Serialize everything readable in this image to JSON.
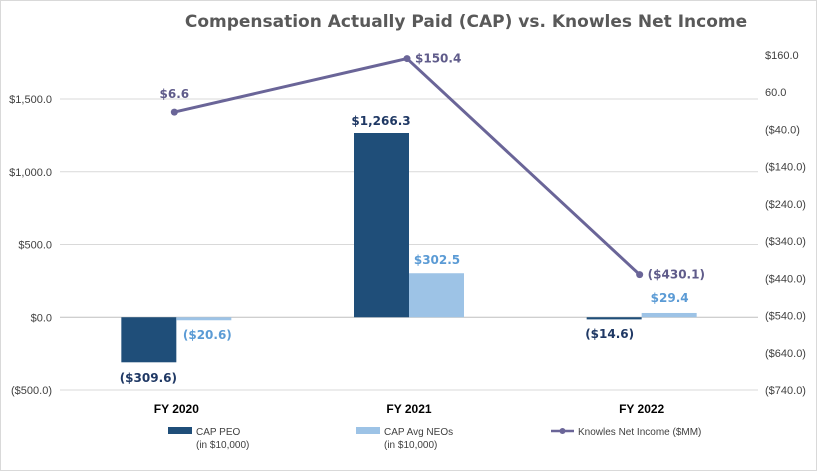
{
  "chart_data": {
    "type": "bar",
    "title": "Compensation Actually Paid (CAP) vs. Knowles Net Income",
    "categories": [
      "FY 2020",
      "FY 2021",
      "FY 2022"
    ],
    "series": [
      {
        "name": "CAP PEO",
        "name_line2": "(in $10,000)",
        "axis": "left",
        "color": "#1f4e79",
        "label_color": "#1f3864",
        "values": [
          -309.6,
          1266.3,
          -14.6
        ],
        "labels": [
          "($309.6)",
          "$1,266.3",
          "($14.6)"
        ]
      },
      {
        "name": "CAP Avg NEOs",
        "name_line2": "(in $10,000)",
        "axis": "left",
        "color": "#9dc3e6",
        "label_color": "#5b9bd5",
        "values": [
          -20.6,
          302.5,
          29.4
        ],
        "labels": [
          "($20.6)",
          "$302.5",
          "$29.4"
        ]
      },
      {
        "name": "Knowles Net Income ($MM)",
        "axis": "right",
        "type": "line",
        "color": "#6a6598",
        "label_color": "#5f5b8a",
        "values": [
          6.6,
          150.4,
          -430.1
        ],
        "labels": [
          "$6.6",
          "$150.4",
          "($430.1)"
        ]
      }
    ],
    "y_left": {
      "min": -500,
      "max": 1500,
      "step": 500,
      "tick_labels": [
        "($500.0)",
        "$0.0",
        "$500.0",
        "$1,000.0",
        "$1,500.0"
      ]
    },
    "y_right": {
      "min": -740,
      "max": 160,
      "step": 100,
      "tick_labels": [
        "($740.0)",
        "($640.0)",
        "($540.0)",
        "($440.0)",
        "($340.0)",
        "($240.0)",
        "($140.0)",
        "($40.0)",
        "60.0",
        "$160.0"
      ]
    },
    "grid": true,
    "legend_position": "bottom"
  }
}
